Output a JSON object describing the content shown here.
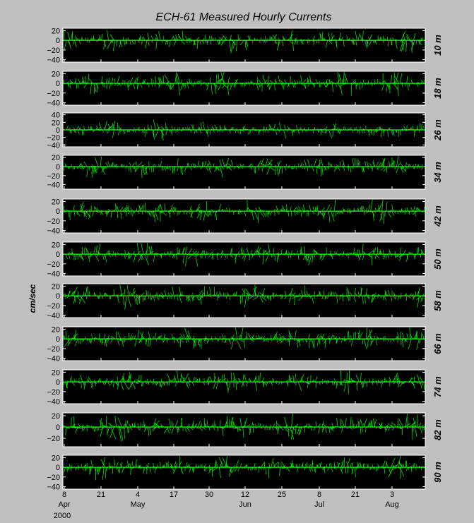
{
  "chart_data": {
    "type": "line",
    "title": "ECH-61   Measured Hourly Currents",
    "ylabel": "cm/sec",
    "series_color": "#00ff00",
    "grid": false,
    "x_ticks": [
      {
        "day": "8",
        "month": "Apr"
      },
      {
        "day": "21",
        "month": ""
      },
      {
        "day": "4",
        "month": "May"
      },
      {
        "day": "17",
        "month": ""
      },
      {
        "day": "30",
        "month": ""
      },
      {
        "day": "12",
        "month": "Jun"
      },
      {
        "day": "25",
        "month": ""
      },
      {
        "day": "8",
        "month": "Jul"
      },
      {
        "day": "21",
        "month": ""
      },
      {
        "day": "3",
        "month": "Aug"
      }
    ],
    "x_year_label": "2000",
    "xlim": [
      "2000-04-08",
      "2000-08-17"
    ],
    "panels": [
      {
        "depth": "10 m",
        "ylim": [
          -45,
          25
        ],
        "yticks": [
          "20",
          "0",
          "−20",
          "−40"
        ]
      },
      {
        "depth": "18 m",
        "ylim": [
          -45,
          25
        ],
        "yticks": [
          "20",
          "0",
          "−20",
          "−40"
        ]
      },
      {
        "depth": "26 m",
        "ylim": [
          -45,
          45
        ],
        "yticks": [
          "40",
          "20",
          "0",
          "−20",
          "−40"
        ]
      },
      {
        "depth": "34 m",
        "ylim": [
          -50,
          25
        ],
        "yticks": [
          "20",
          "0",
          "−20",
          "−40"
        ]
      },
      {
        "depth": "42 m",
        "ylim": [
          -45,
          25
        ],
        "yticks": [
          "20",
          "0",
          "−20",
          "−40"
        ]
      },
      {
        "depth": "50 m",
        "ylim": [
          -45,
          25
        ],
        "yticks": [
          "20",
          "0",
          "−20",
          "−40"
        ]
      },
      {
        "depth": "58 m",
        "ylim": [
          -45,
          25
        ],
        "yticks": [
          "20",
          "0",
          "−20",
          "−40"
        ]
      },
      {
        "depth": "66 m",
        "ylim": [
          -45,
          25
        ],
        "yticks": [
          "20",
          "0",
          "−20",
          "−40"
        ]
      },
      {
        "depth": "74 m",
        "ylim": [
          -45,
          25
        ],
        "yticks": [
          "20",
          "0",
          "−20",
          "−40"
        ]
      },
      {
        "depth": "82 m",
        "ylim": [
          -35,
          25
        ],
        "yticks": [
          "20",
          "0",
          "−20"
        ]
      },
      {
        "depth": "90 m",
        "ylim": [
          -45,
          25
        ],
        "yticks": [
          "20",
          "0",
          "−20",
          "−40"
        ]
      }
    ]
  }
}
